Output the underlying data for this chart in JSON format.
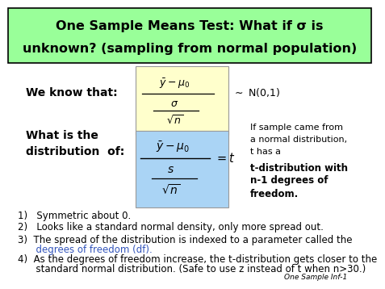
{
  "title_line1": "One Sample Means Test: What if σ is",
  "title_line2": "unknown? (sampling from normal population)",
  "title_bg": "#99ff99",
  "box1_bg": "#ffffcc",
  "box2_bg": "#aad4f5",
  "we_know_text": "We know that:",
  "what_is_text1": "What is the",
  "what_is_text2": "distribution  of:",
  "right_text1": "If sample came from",
  "right_text2": "a normal distribution,",
  "right_text3": "t has a",
  "right_text4": "t-distribution with",
  "right_text5": "n-1 degrees of",
  "right_text6": "freedom.",
  "item1": "1)   Symmetric about 0.",
  "item2": "2)   Looks like a standard normal density, only more spread out.",
  "item3_a": "3)  The spread of the distribution is indexed to a parameter called the",
  "item3_b": "      degrees of freedom (df).",
  "item4_a": "4)  As the degrees of freedom increase, the t-distribution gets closer to the",
  "item4_b": "      standard normal distribution. (Safe to use z instead of t when n>30.)",
  "footer": "One Sample Inf-1",
  "blue_text_color": "#3355bb",
  "black": "#000000"
}
